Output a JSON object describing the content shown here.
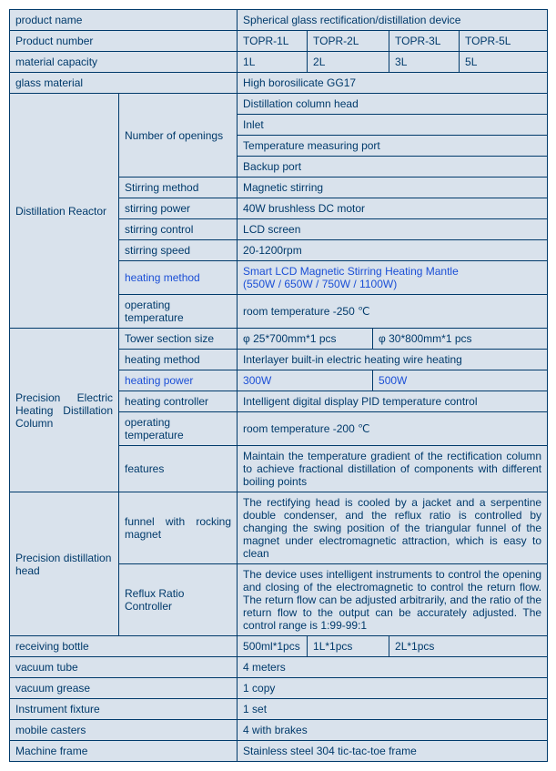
{
  "r1": {
    "label": "product name",
    "value": "Spherical   glass rectification/distillation device"
  },
  "r2": {
    "label": "Product number",
    "c1": "TOPR-1L",
    "c2": "TOPR-2L",
    "c3": "TOPR-3L",
    "c4": "TOPR-5L"
  },
  "r3": {
    "label": "material capacity",
    "c1": "1L",
    "c2": "2L",
    "c3": "3L",
    "c4": "5L"
  },
  "r4": {
    "label": "glass material",
    "value": "High borosilicate GG17"
  },
  "reactor": {
    "label": "Distillation Reactor",
    "openings": {
      "label": "Number of openings",
      "a": "Distillation column head",
      "b": "Inlet",
      "c": "Temperature measuring port",
      "d": "Backup port"
    },
    "stirMethod": {
      "label": "Stirring method",
      "value": "Magnetic stirring"
    },
    "stirPower": {
      "label": "stirring power",
      "value": "40W brushless DC motor"
    },
    "stirControl": {
      "label": "stirring control",
      "value": "LCD screen"
    },
    "stirSpeed": {
      "label": "stirring speed",
      "value": "20-1200rpm"
    },
    "heatMethod": {
      "label": "heating method",
      "value": "Smart LCD Magnetic Stirring Heating Mantle\n(550W / 650W / 750W / 1100W)"
    },
    "opTemp": {
      "label": "operating temperature",
      "value": "room temperature -250 ℃"
    }
  },
  "column": {
    "label": "Precision Electric Heating Distillation Column",
    "towerSize": {
      "label": "Tower section size",
      "c1": "φ 25*700mm*1 pcs",
      "c2": "φ 30*800mm*1 pcs"
    },
    "heatMethod": {
      "label": "heating method",
      "value": "Interlayer built-in electric heating wire heating"
    },
    "heatPower": {
      "label": "heating power",
      "c1": "300W",
      "c2": "500W"
    },
    "heatController": {
      "label": "heating controller",
      "value": "Intelligent digital display PID temperature control"
    },
    "opTemp": {
      "label": "operating temperature",
      "value": "room temperature -200 ℃"
    },
    "features": {
      "label": "features",
      "value": "Maintain the temperature gradient of the rectification column to achieve fractional distillation of components with different boiling points"
    }
  },
  "head": {
    "label": "Precision distillation head",
    "funnel": {
      "label": "funnel with rocking magnet",
      "value": "The rectifying head is cooled by a jacket and a serpentine double condenser, and the reflux ratio is controlled by changing the swing position of the triangular funnel of the magnet under electromagnetic attraction, which is easy to clean"
    },
    "reflux": {
      "label": "Reflux Ratio Controller",
      "value": "The device uses intelligent instruments to control the opening and closing of the electromagnetic to control the return flow. The return flow can be adjusted arbitrarily, and the ratio of the return flow to the output can be accurately adjusted. The control range is 1:99-99:1"
    }
  },
  "recv": {
    "label": "receiving bottle",
    "c1": "500ml*1pcs",
    "c2": "1L*1pcs",
    "c3": "2L*1pcs"
  },
  "vacTube": {
    "label": "vacuum tube",
    "value": "4 meters"
  },
  "vacGrease": {
    "label": "vacuum grease",
    "value": "1 copy"
  },
  "fixture": {
    "label": "Instrument fixture",
    "value": "1 set"
  },
  "casters": {
    "label": "mobile casters",
    "value": "4 with brakes"
  },
  "frame": {
    "label": "Machine frame",
    "value": "Stainless steel 304 tic-tac-toe frame"
  }
}
